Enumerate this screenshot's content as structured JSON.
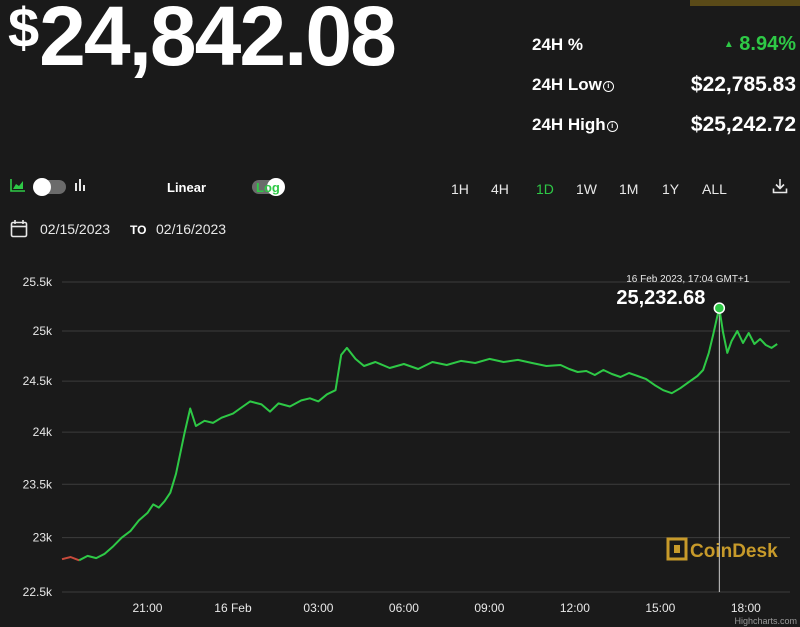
{
  "header": {
    "currency_symbol": "$",
    "price": "24,842.08"
  },
  "stats": {
    "change_label": "24H %",
    "change_value": "8.94%",
    "low_label": "24H Low",
    "low_value": "$22,785.83",
    "high_label": "24H High",
    "high_value": "$25,242.72"
  },
  "controls": {
    "scale_linear_label": "Linear",
    "scale_log_label": "Log",
    "ranges": [
      "1H",
      "4H",
      "1D",
      "1W",
      "1M",
      "1Y",
      "ALL"
    ],
    "active_range": "1D",
    "date_from": "02/15/2023",
    "date_to_label": "TO",
    "date_to": "02/16/2023"
  },
  "colors": {
    "background": "#1a1a1a",
    "line": "#2ec946",
    "line_start": "#c94b3c",
    "text": "#ffffff",
    "brand_gold": "#c79a2a"
  },
  "icons": {
    "area_chart": "area-chart-icon",
    "bar_chart": "bar-chart-icon",
    "calendar": "calendar-icon",
    "download": "download-icon"
  },
  "watermark": "CoinDesk",
  "credit": "Highcharts.com",
  "chart_data": {
    "type": "line",
    "x_unit": "hours since 15 Feb 2023 18:00",
    "x_tick_labels": [
      "21:00",
      "16 Feb",
      "03:00",
      "06:00",
      "09:00",
      "12:00",
      "15:00",
      "18:00"
    ],
    "y_tick_labels": [
      "22.5k",
      "23k",
      "23.5k",
      "24k",
      "24.5k",
      "25k",
      "25.5k"
    ],
    "ylim": [
      22500,
      25500
    ],
    "grid": true,
    "tooltip": {
      "label": "16 Feb 2023, 17:04 GMT+1",
      "value": "25,232.68",
      "x": 23.07,
      "y": 25232.68
    },
    "series": [
      {
        "points": [
          [
            0.0,
            22800
          ],
          [
            0.3,
            22820
          ],
          [
            0.6,
            22790
          ],
          [
            0.9,
            22830
          ],
          [
            1.2,
            22810
          ],
          [
            1.5,
            22850
          ],
          [
            1.8,
            22920
          ],
          [
            2.1,
            23000
          ],
          [
            2.4,
            23060
          ],
          [
            2.7,
            23160
          ],
          [
            3.0,
            23230
          ],
          [
            3.2,
            23310
          ],
          [
            3.4,
            23280
          ],
          [
            3.6,
            23340
          ],
          [
            3.8,
            23420
          ],
          [
            4.0,
            23600
          ],
          [
            4.2,
            23860
          ],
          [
            4.3,
            23990
          ],
          [
            4.5,
            24230
          ],
          [
            4.7,
            24060
          ],
          [
            5.0,
            24110
          ],
          [
            5.3,
            24090
          ],
          [
            5.6,
            24140
          ],
          [
            6.0,
            24180
          ],
          [
            6.3,
            24240
          ],
          [
            6.6,
            24300
          ],
          [
            7.0,
            24270
          ],
          [
            7.3,
            24200
          ],
          [
            7.6,
            24280
          ],
          [
            8.0,
            24250
          ],
          [
            8.4,
            24310
          ],
          [
            8.7,
            24330
          ],
          [
            9.0,
            24300
          ],
          [
            9.3,
            24370
          ],
          [
            9.6,
            24410
          ],
          [
            9.8,
            24760
          ],
          [
            10.0,
            24830
          ],
          [
            10.3,
            24720
          ],
          [
            10.6,
            24650
          ],
          [
            11.0,
            24690
          ],
          [
            11.5,
            24630
          ],
          [
            12.0,
            24670
          ],
          [
            12.5,
            24620
          ],
          [
            13.0,
            24690
          ],
          [
            13.5,
            24660
          ],
          [
            14.0,
            24700
          ],
          [
            14.5,
            24680
          ],
          [
            15.0,
            24720
          ],
          [
            15.5,
            24690
          ],
          [
            16.0,
            24710
          ],
          [
            16.5,
            24680
          ],
          [
            17.0,
            24650
          ],
          [
            17.5,
            24660
          ],
          [
            17.8,
            24620
          ],
          [
            18.1,
            24590
          ],
          [
            18.4,
            24600
          ],
          [
            18.7,
            24560
          ],
          [
            19.0,
            24610
          ],
          [
            19.3,
            24570
          ],
          [
            19.6,
            24540
          ],
          [
            19.9,
            24580
          ],
          [
            20.2,
            24550
          ],
          [
            20.5,
            24520
          ],
          [
            20.8,
            24460
          ],
          [
            21.1,
            24410
          ],
          [
            21.4,
            24380
          ],
          [
            21.7,
            24430
          ],
          [
            22.0,
            24490
          ],
          [
            22.3,
            24550
          ],
          [
            22.5,
            24610
          ],
          [
            22.7,
            24780
          ],
          [
            22.85,
            24960
          ],
          [
            23.0,
            25150
          ],
          [
            23.07,
            25232
          ],
          [
            23.2,
            24990
          ],
          [
            23.35,
            24780
          ],
          [
            23.5,
            24900
          ],
          [
            23.7,
            25000
          ],
          [
            23.9,
            24880
          ],
          [
            24.1,
            24980
          ],
          [
            24.3,
            24870
          ],
          [
            24.5,
            24920
          ],
          [
            24.7,
            24860
          ],
          [
            24.9,
            24830
          ],
          [
            25.1,
            24870
          ]
        ]
      }
    ]
  }
}
